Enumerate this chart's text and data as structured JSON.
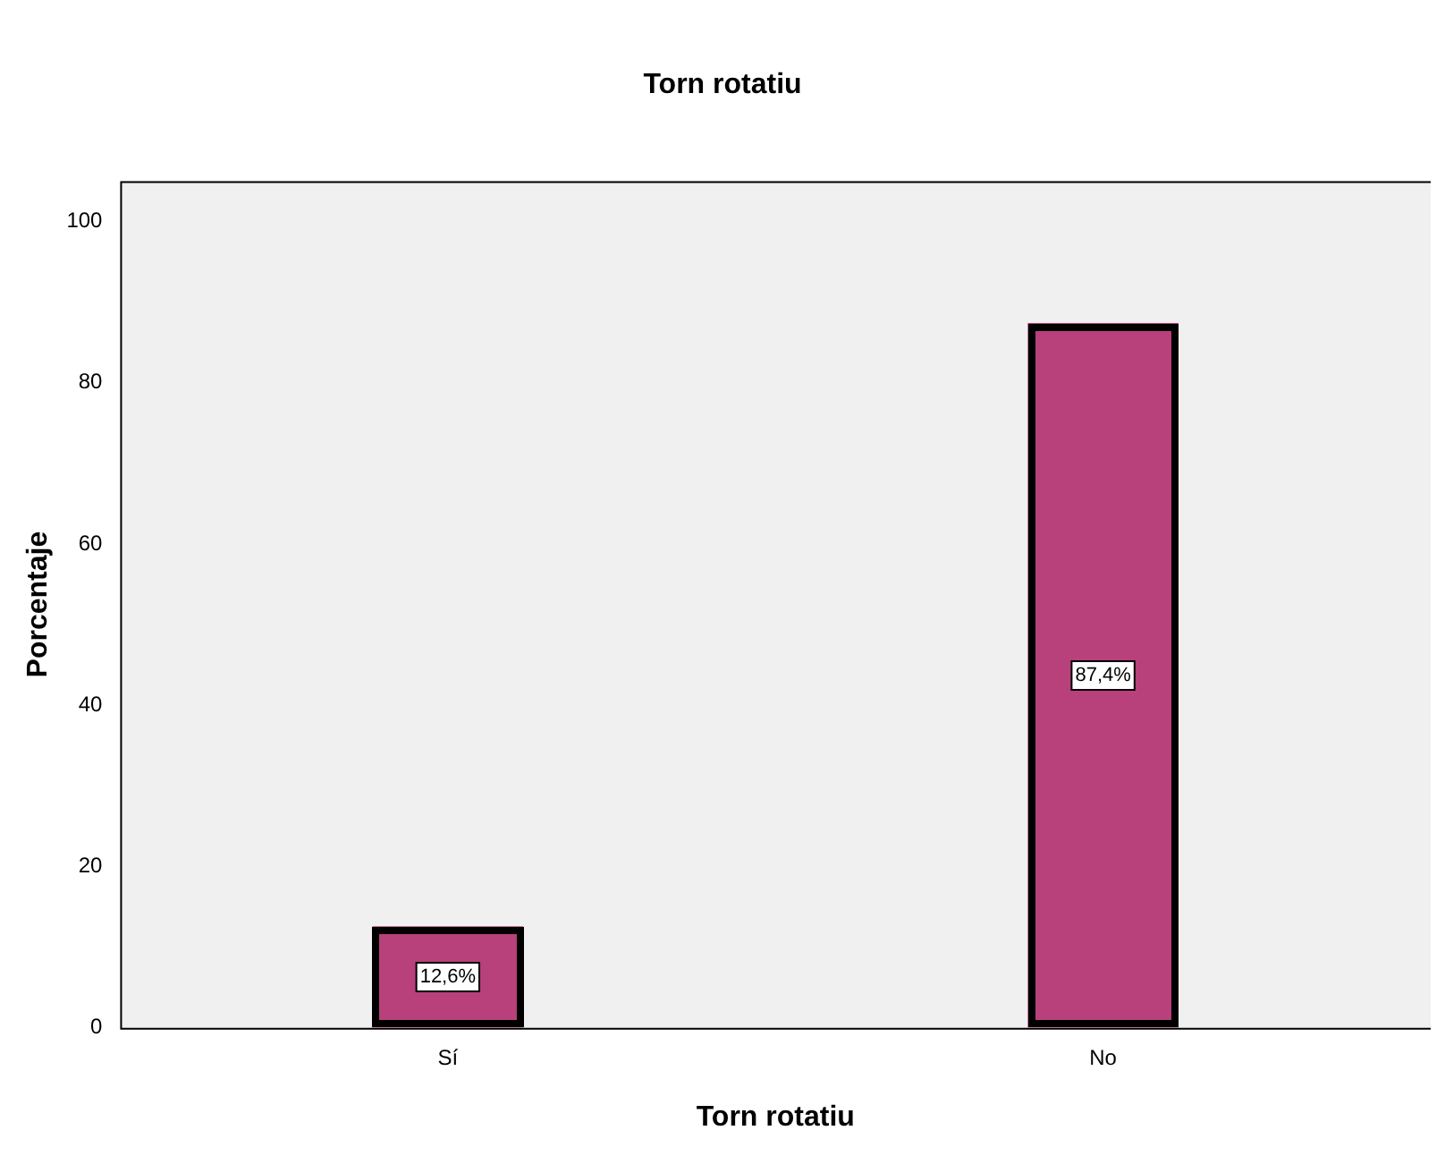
{
  "chart_data": {
    "type": "bar",
    "title": "Torn rotatiu",
    "xlabel": "Torn rotatiu",
    "ylabel": "Porcentaje",
    "categories": [
      "Sí",
      "No"
    ],
    "values": [
      12.6,
      87.4
    ],
    "value_labels": [
      "12,6%",
      "87,4%"
    ],
    "color": "#b8407b",
    "ylim": [
      0,
      105
    ],
    "yticks": [
      0,
      20,
      40,
      60,
      80,
      100
    ]
  }
}
